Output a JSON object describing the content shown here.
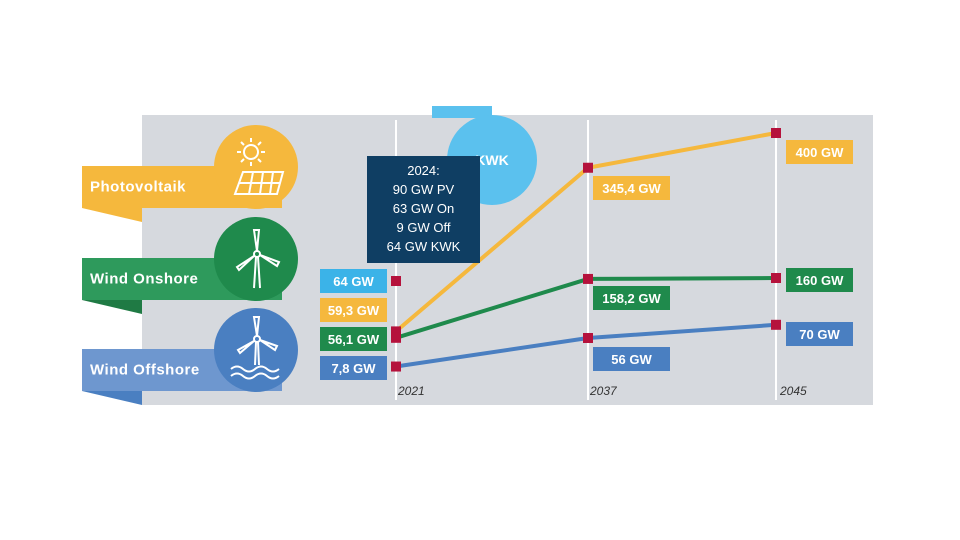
{
  "chart_data": {
    "type": "line",
    "x": [
      "2021",
      "2037",
      "2045"
    ],
    "ylabel": "",
    "xlabel": "",
    "series": [
      {
        "name": "Photovoltaik",
        "color": "#f5b83d",
        "values": [
          59.3,
          345.4,
          400
        ],
        "labels": [
          "59,3 GW",
          "345,4 GW",
          "400 GW"
        ],
        "icon": "solar-panel-icon"
      },
      {
        "name": "Wind Onshore",
        "color": "#1f8a4c",
        "values": [
          56.1,
          158.2,
          160
        ],
        "labels": [
          "56,1 GW",
          "158,2 GW",
          "160 GW"
        ],
        "icon": "wind-turbine-icon"
      },
      {
        "name": "Wind Offshore",
        "color": "#4a7fc1",
        "values": [
          7.8,
          56,
          70
        ],
        "labels": [
          "7,8 GW",
          "56 GW",
          "70 GW"
        ],
        "icon": "offshore-wind-icon"
      }
    ],
    "extra_series": {
      "name": "KWK",
      "color": "#3bb3e8",
      "value_2021": 64,
      "label": "64 GW"
    },
    "annotation": {
      "title": "2024:",
      "lines": [
        "90 GW PV",
        "63 GW On",
        "9 GW Off",
        "64 GW KWK"
      ]
    },
    "kwk_label": "KWK",
    "grid": "vertical-lines"
  }
}
